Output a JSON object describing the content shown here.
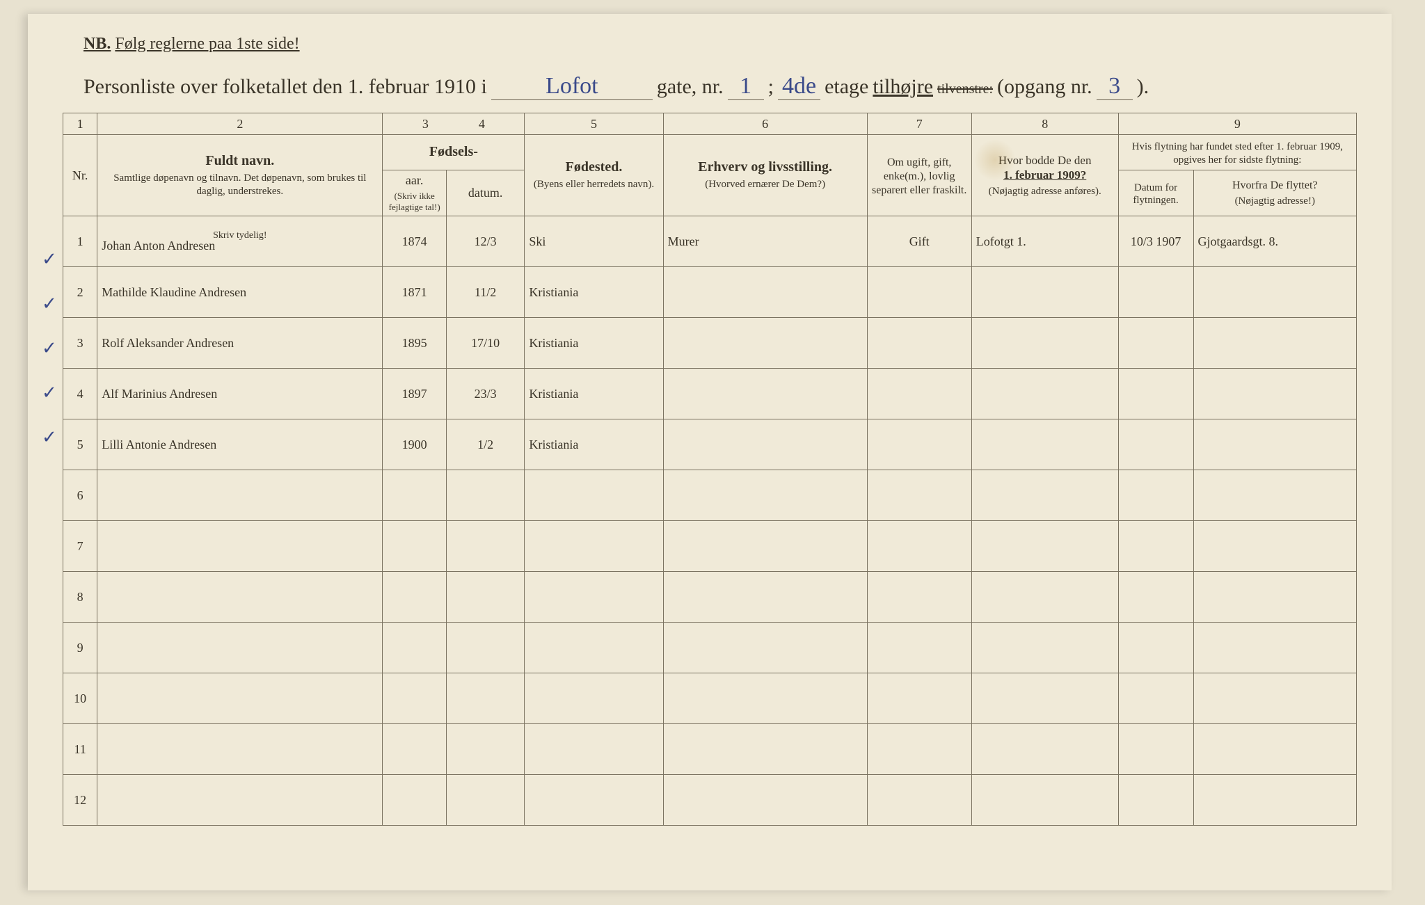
{
  "nb": {
    "label": "NB.",
    "text": "Følg reglerne paa 1ste side!"
  },
  "title": {
    "prefix": "Personliste over folketallet den 1. februar 1910 i",
    "street": "Lofot",
    "gate_label": "gate, nr.",
    "gate_nr": "1",
    "semicolon": ";",
    "etage_nr": "4de",
    "etage_label": "etage",
    "tilhojre": "tilhøjre",
    "tilvenstre": "tilvenstre:",
    "opgang_label": "(opgang nr.",
    "opgang_nr": "3",
    "closing": ")."
  },
  "colnums": [
    "1",
    "2",
    "3",
    "4",
    "5",
    "6",
    "7",
    "8",
    "9"
  ],
  "headers": {
    "nr": "Nr.",
    "fuldt_navn": "Fuldt navn.",
    "fuldt_sub": "Samtlige døpenavn og tilnavn. Det døpenavn, som brukes til daglig, understrekes.",
    "skriv_tydelig": "Skriv tydelig!",
    "fodsels": "Fødsels-",
    "aar": "aar.",
    "datum": "datum.",
    "fodsels_sub": "(Skriv ikke fejlagtige tal!)",
    "fodested": "Fødested.",
    "fodested_sub": "(Byens eller herredets navn).",
    "erhverv": "Erhverv og livsstilling.",
    "erhverv_sub": "(Hvorved ernærer De Dem?)",
    "ugift": "Om ugift, gift, enke(m.), lovlig separert eller fraskilt.",
    "hvor_bodde": "Hvor bodde De den",
    "hvor_date": "1. februar 1909?",
    "hvor_sub": "(Nøjagtig adresse anføres).",
    "flytning": "Hvis flytning har fundet sted efter 1. februar 1909, opgives her for sidste flytning:",
    "datum_flyt": "Datum for flytningen.",
    "hvorfra": "Hvorfra De flyttet?",
    "hvorfra_sub": "(Nøjagtig adresse!)"
  },
  "rows": [
    {
      "n": "1",
      "name": "Johan Anton Andresen",
      "aar": "1874",
      "dat": "12/3",
      "sted": "Ski",
      "erhv": "Murer",
      "stat": "Gift",
      "bodde": "Lofotgt 1.",
      "fdat": "10/3 1907",
      "fra": "Gjotgaardsgt. 8."
    },
    {
      "n": "2",
      "name": "Mathilde Klaudine Andresen",
      "aar": "1871",
      "dat": "11/2",
      "sted": "Kristiania",
      "erhv": "",
      "stat": "",
      "bodde": "",
      "fdat": "",
      "fra": ""
    },
    {
      "n": "3",
      "name": "Rolf Aleksander Andresen",
      "aar": "1895",
      "dat": "17/10",
      "sted": "Kristiania",
      "erhv": "",
      "stat": "",
      "bodde": "",
      "fdat": "",
      "fra": ""
    },
    {
      "n": "4",
      "name": "Alf Marinius Andresen",
      "aar": "1897",
      "dat": "23/3",
      "sted": "Kristiania",
      "erhv": "",
      "stat": "",
      "bodde": "",
      "fdat": "",
      "fra": ""
    },
    {
      "n": "5",
      "name": "Lilli Antonie Andresen",
      "aar": "1900",
      "dat": "1/2",
      "sted": "Kristiania",
      "erhv": "",
      "stat": "",
      "bodde": "",
      "fdat": "",
      "fra": ""
    },
    {
      "n": "6",
      "name": "",
      "aar": "",
      "dat": "",
      "sted": "",
      "erhv": "",
      "stat": "",
      "bodde": "",
      "fdat": "",
      "fra": ""
    },
    {
      "n": "7",
      "name": "",
      "aar": "",
      "dat": "",
      "sted": "",
      "erhv": "",
      "stat": "",
      "bodde": "",
      "fdat": "",
      "fra": ""
    },
    {
      "n": "8",
      "name": "",
      "aar": "",
      "dat": "",
      "sted": "",
      "erhv": "",
      "stat": "",
      "bodde": "",
      "fdat": "",
      "fra": ""
    },
    {
      "n": "9",
      "name": "",
      "aar": "",
      "dat": "",
      "sted": "",
      "erhv": "",
      "stat": "",
      "bodde": "",
      "fdat": "",
      "fra": ""
    },
    {
      "n": "10",
      "name": "",
      "aar": "",
      "dat": "",
      "sted": "",
      "erhv": "",
      "stat": "",
      "bodde": "",
      "fdat": "",
      "fra": ""
    },
    {
      "n": "11",
      "name": "",
      "aar": "",
      "dat": "",
      "sted": "",
      "erhv": "",
      "stat": "",
      "bodde": "",
      "fdat": "",
      "fra": ""
    },
    {
      "n": "12",
      "name": "",
      "aar": "",
      "dat": "",
      "sted": "",
      "erhv": "",
      "stat": "",
      "bodde": "",
      "fdat": "",
      "fra": ""
    }
  ],
  "margin_marks": [
    "✓",
    "✓",
    "✓",
    "✓",
    "✓"
  ],
  "col_widths": {
    "nr": "42px",
    "name": "350px",
    "aar": "78px",
    "dat": "96px",
    "sted": "170px",
    "erhv": "250px",
    "stat": "128px",
    "bodde": "180px",
    "fdat": "92px",
    "fra": "200px"
  },
  "colors": {
    "paper": "#f0ead8",
    "ink_print": "#3a3428",
    "ink_hand": "#3a4a8a",
    "rule": "#7a7260"
  }
}
